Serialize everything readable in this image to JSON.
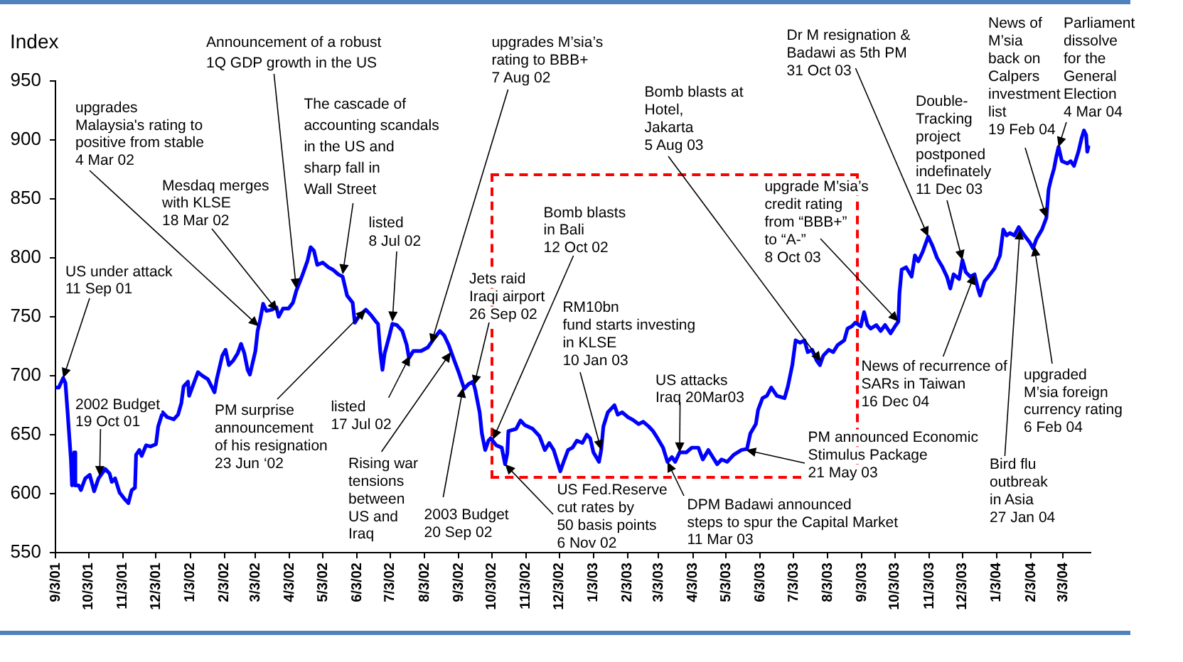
{
  "chart_data": {
    "type": "line",
    "ylabel": "Index",
    "color": "#0000ff",
    "marker": "none",
    "line_style": "solid",
    "grid": false,
    "legend": false,
    "xlim": [
      "2001-09-03",
      "2004-03-28"
    ],
    "xticks": [
      {
        "value": "2001-09-03",
        "label": "9/3/01"
      },
      {
        "value": "2001-10-03",
        "label": "10/3/01"
      },
      {
        "value": "2001-11-03",
        "label": "11/3/01"
      },
      {
        "value": "2001-12-03",
        "label": "12/3/01"
      },
      {
        "value": "2002-01-03",
        "label": "1/3/02"
      },
      {
        "value": "2002-02-03",
        "label": "2/3/02"
      },
      {
        "value": "2002-03-03",
        "label": "3/3/02"
      },
      {
        "value": "2002-04-03",
        "label": "4/3/02"
      },
      {
        "value": "2002-05-03",
        "label": "5/3/02"
      },
      {
        "value": "2002-06-03",
        "label": "6/3/02"
      },
      {
        "value": "2002-07-03",
        "label": "7/3/02"
      },
      {
        "value": "2002-08-03",
        "label": "8/3/02"
      },
      {
        "value": "2002-09-03",
        "label": "9/3/02"
      },
      {
        "value": "2002-10-03",
        "label": "10/3/02"
      },
      {
        "value": "2002-11-03",
        "label": "11/3/02"
      },
      {
        "value": "2002-12-03",
        "label": "12/3/02"
      },
      {
        "value": "2003-01-03",
        "label": "1/3/03"
      },
      {
        "value": "2003-02-03",
        "label": "2/3/03"
      },
      {
        "value": "2003-03-03",
        "label": "3/3/03"
      },
      {
        "value": "2003-04-03",
        "label": "4/3/03"
      },
      {
        "value": "2003-05-03",
        "label": "5/3/03"
      },
      {
        "value": "2003-06-03",
        "label": "6/3/03"
      },
      {
        "value": "2003-07-03",
        "label": "7/3/03"
      },
      {
        "value": "2003-08-03",
        "label": "8/3/03"
      },
      {
        "value": "2003-09-03",
        "label": "9/3/03"
      },
      {
        "value": "2003-10-03",
        "label": "10/3/03"
      },
      {
        "value": "2003-11-03",
        "label": "11/3/03"
      },
      {
        "value": "2003-12-03",
        "label": "12/3/03"
      },
      {
        "value": "2004-01-03",
        "label": "1/3/04"
      },
      {
        "value": "2004-02-03",
        "label": "2/3/04"
      },
      {
        "value": "2004-03-03",
        "label": "3/3/04"
      }
    ],
    "ylim": [
      550,
      950
    ],
    "yticks": [
      550,
      600,
      650,
      700,
      750,
      800,
      850,
      900,
      950
    ],
    "x": [
      "2001-09-03",
      "2001-09-06",
      "2001-09-10",
      "2001-09-12",
      "2001-09-14",
      "2001-09-17",
      "2001-09-18",
      "2001-09-20",
      "2001-09-21",
      "2001-09-24",
      "2001-09-26",
      "2001-09-30",
      "2001-10-04",
      "2001-10-08",
      "2001-10-12",
      "2001-10-18",
      "2001-10-22",
      "2001-10-24",
      "2001-10-27",
      "2001-10-31",
      "2001-11-05",
      "2001-11-08",
      "2001-11-11",
      "2001-11-14",
      "2001-11-15",
      "2001-11-18",
      "2001-11-20",
      "2001-11-24",
      "2001-11-28",
      "2001-12-03",
      "2001-12-05",
      "2001-12-09",
      "2001-12-13",
      "2001-12-19",
      "2001-12-23",
      "2001-12-26",
      "2001-12-28",
      "2002-01-01",
      "2002-01-02",
      "2002-01-06",
      "2002-01-10",
      "2002-01-14",
      "2002-01-19",
      "2002-01-25",
      "2002-01-27",
      "2002-02-01",
      "2002-02-04",
      "2002-02-07",
      "2002-02-11",
      "2002-02-15",
      "2002-02-18",
      "2002-02-21",
      "2002-02-24",
      "2002-02-26",
      "2002-03-03",
      "2002-03-05",
      "2002-03-07",
      "2002-03-10",
      "2002-03-13",
      "2002-03-18",
      "2002-03-22",
      "2002-03-24",
      "2002-03-28",
      "2002-04-02",
      "2002-04-06",
      "2002-04-09",
      "2002-04-14",
      "2002-04-19",
      "2002-04-22",
      "2002-04-25",
      "2002-04-28",
      "2002-05-03",
      "2002-05-08",
      "2002-05-12",
      "2002-05-17",
      "2002-05-21",
      "2002-05-25",
      "2002-05-30",
      "2002-06-01",
      "2002-06-05",
      "2002-06-11",
      "2002-06-16",
      "2002-06-20",
      "2002-06-22",
      "2002-06-24",
      "2002-06-26",
      "2002-06-28",
      "2002-07-02",
      "2002-07-05",
      "2002-07-09",
      "2002-07-14",
      "2002-07-18",
      "2002-07-20",
      "2002-07-24",
      "2002-07-31",
      "2002-08-06",
      "2002-08-12",
      "2002-08-17",
      "2002-08-21",
      "2002-08-25",
      "2002-08-30",
      "2002-09-03",
      "2002-09-08",
      "2002-09-12",
      "2002-09-16",
      "2002-09-18",
      "2002-09-22",
      "2002-09-24",
      "2002-09-27",
      "2002-09-30",
      "2002-10-02",
      "2002-10-07",
      "2002-10-12",
      "2002-10-15",
      "2002-10-17",
      "2002-10-18",
      "2002-10-25",
      "2002-10-29",
      "2002-11-02",
      "2002-11-09",
      "2002-11-15",
      "2002-11-20",
      "2002-11-24",
      "2002-11-28",
      "2002-12-02",
      "2002-12-04",
      "2002-12-07",
      "2002-12-11",
      "2002-12-15",
      "2002-12-19",
      "2002-12-24",
      "2002-12-28",
      "2002-12-31",
      "2003-01-03",
      "2003-01-08",
      "2003-01-10",
      "2003-01-12",
      "2003-01-16",
      "2003-01-22",
      "2003-01-25",
      "2003-01-29",
      "2003-02-03",
      "2003-02-07",
      "2003-02-13",
      "2003-02-17",
      "2003-02-22",
      "2003-02-26",
      "2003-03-02",
      "2003-03-07",
      "2003-03-11",
      "2003-03-15",
      "2003-03-18",
      "2003-03-22",
      "2003-03-28",
      "2003-04-02",
      "2003-04-08",
      "2003-04-12",
      "2003-04-17",
      "2003-04-21",
      "2003-04-25",
      "2003-04-29",
      "2003-05-04",
      "2003-05-10",
      "2003-05-17",
      "2003-05-22",
      "2003-05-25",
      "2003-05-30",
      "2003-06-01",
      "2003-06-05",
      "2003-06-09",
      "2003-06-13",
      "2003-06-18",
      "2003-06-25",
      "2003-06-28",
      "2003-07-02",
      "2003-07-05",
      "2003-07-09",
      "2003-07-13",
      "2003-07-16",
      "2003-07-20",
      "2003-07-24",
      "2003-07-27",
      "2003-07-30",
      "2003-08-04",
      "2003-08-08",
      "2003-08-12",
      "2003-08-18",
      "2003-08-21",
      "2003-08-25",
      "2003-08-28",
      "2003-09-02",
      "2003-09-05",
      "2003-09-08",
      "2003-09-11",
      "2003-09-16",
      "2003-09-20",
      "2003-09-24",
      "2003-09-29",
      "2003-10-03",
      "2003-10-06",
      "2003-10-07",
      "2003-10-09",
      "2003-10-13",
      "2003-10-18",
      "2003-10-21",
      "2003-10-24",
      "2003-10-28",
      "2003-11-02",
      "2003-11-06",
      "2003-11-10",
      "2003-11-15",
      "2003-11-19",
      "2003-11-22",
      "2003-11-25",
      "2003-11-30",
      "2003-12-03",
      "2003-12-06",
      "2003-12-10",
      "2003-12-14",
      "2003-12-17",
      "2003-12-19",
      "2003-12-23",
      "2003-12-28",
      "2004-01-01",
      "2004-01-06",
      "2004-01-09",
      "2004-01-12",
      "2004-01-15",
      "2004-01-19",
      "2004-01-23",
      "2004-01-28",
      "2004-02-02",
      "2004-02-05",
      "2004-02-08",
      "2004-02-13",
      "2004-02-17",
      "2004-02-19",
      "2004-02-21",
      "2004-02-24",
      "2004-02-26",
      "2004-02-28",
      "2004-03-02",
      "2004-03-07",
      "2004-03-10",
      "2004-03-13",
      "2004-03-17",
      "2004-03-20",
      "2004-03-22",
      "2004-03-24",
      "2004-03-25",
      "2004-03-26"
    ],
    "values": [
      690,
      690,
      698,
      694,
      669,
      629,
      607,
      635,
      607,
      607,
      603,
      613,
      616,
      602,
      613,
      621,
      617,
      610,
      613,
      601,
      595,
      592,
      603,
      605,
      633,
      637,
      632,
      641,
      640,
      642,
      657,
      669,
      665,
      663,
      667,
      677,
      691,
      695,
      683,
      693,
      703,
      700,
      697,
      686,
      697,
      717,
      722,
      709,
      713,
      719,
      727,
      719,
      705,
      701,
      721,
      738,
      746,
      761,
      755,
      756,
      758,
      750,
      757,
      757,
      762,
      772,
      784,
      797,
      809,
      806,
      794,
      796,
      792,
      790,
      786,
      784,
      768,
      762,
      745,
      751,
      756,
      751,
      746,
      744,
      721,
      705,
      719,
      733,
      744,
      743,
      738,
      726,
      715,
      721,
      721,
      724,
      732,
      738,
      734,
      726,
      713,
      703,
      689,
      693,
      695,
      688,
      669,
      651,
      637,
      645,
      647,
      641,
      639,
      625,
      634,
      653,
      655,
      662,
      658,
      655,
      649,
      637,
      643,
      637,
      625,
      619,
      627,
      637,
      639,
      645,
      643,
      650,
      647,
      635,
      627,
      637,
      657,
      669,
      675,
      667,
      669,
      665,
      663,
      659,
      661,
      657,
      653,
      647,
      639,
      627,
      631,
      627,
      635,
      635,
      639,
      639,
      629,
      637,
      631,
      625,
      629,
      627,
      633,
      637,
      638,
      651,
      659,
      671,
      681,
      683,
      690,
      683,
      681,
      691,
      709,
      730,
      728,
      730,
      720,
      722,
      713,
      709,
      717,
      722,
      720,
      726,
      730,
      740,
      742,
      745,
      742,
      754,
      743,
      740,
      743,
      738,
      743,
      736,
      742,
      746,
      770,
      790,
      792,
      784,
      802,
      797,
      805,
      818,
      810,
      800,
      792,
      784,
      774,
      786,
      782,
      798,
      788,
      784,
      786,
      774,
      768,
      780,
      786,
      791,
      802,
      824,
      819,
      821,
      819,
      826,
      819,
      813,
      808,
      816,
      824,
      834,
      858,
      866,
      876,
      886,
      894,
      882,
      880,
      882,
      878,
      890,
      902,
      908,
      904,
      890,
      894
    ],
    "annotations": [
      {
        "text": "US under attack\n11 Sep 01",
        "x": "2001-09-10",
        "y": 698
      },
      {
        "text": "2002 Budget\n19 Oct 01",
        "x": "2001-10-13",
        "y": 615
      },
      {
        "text": "upgrades\nMalaysia's rating to\npositive from stable\n4 Mar 02",
        "x": "2002-03-06",
        "y": 742
      },
      {
        "text": "Mesdaq merges\nwith KLSE\n18 Mar 02",
        "x": "2002-03-23",
        "y": 755
      },
      {
        "text": "Announcement of a robust\n1Q GDP growth in the US",
        "x": "2002-04-09",
        "y": 774
      },
      {
        "text": "The cascade of\naccounting scandals\nin the US and\nsharp fall in\nWall Street",
        "x": "2002-05-21",
        "y": 786
      },
      {
        "text": "listed\n8 Jul 02",
        "x": "2002-07-05",
        "y": 746
      },
      {
        "text": "PM surprise\nannouncement\nof his resignation\n23 Jun ‘02",
        "x": "2002-06-11",
        "y": 756
      },
      {
        "text": "listed\n17 Jul 02",
        "x": "2002-07-21",
        "y": 717
      },
      {
        "text": "Rising war\ntensions\nbetween\nUS and\nIraq",
        "x": "2002-08-27",
        "y": 720
      },
      {
        "text": "upgrades M’sia’s\nrating to BBB+\n7 Aug 02",
        "x": "2002-08-09",
        "y": 727
      },
      {
        "text": "2003 Budget\n20 Sep 02",
        "x": "2002-09-07",
        "y": 690
      },
      {
        "text": "Jets raid\nIraqi airport\n26 Sep 02",
        "x": "2002-09-17",
        "y": 692
      },
      {
        "text": "Bomb blasts\nin Bali\n12 Oct 02",
        "x": "2002-10-04",
        "y": 646
      },
      {
        "text": "US Fed.Reserve\ncut rates by\n50 basis points\n6 Nov 02",
        "x": "2002-10-15",
        "y": 625
      },
      {
        "text": "RM10bn\nfund starts investing\nin KLSE\n10 Jan 03",
        "x": "2003-01-10",
        "y": 637
      },
      {
        "text": "US attacks\nIraq 20Mar03",
        "x": "2003-03-22",
        "y": 635
      },
      {
        "text": "DPM Badawi announced\nsteps to spur the Capital Market\n11 Mar 03",
        "x": "2003-03-11",
        "y": 627
      },
      {
        "text": "PM announced Economic\nStimulus Package\n21 May 03",
        "x": "2003-05-21",
        "y": 637
      },
      {
        "text": "Bomb blasts at\nHotel,\nJakarta\n5 Aug 03",
        "x": "2003-07-28",
        "y": 712
      },
      {
        "text": "upgrade M’sia’s\ncredit rating\nfrom “BBB+”\nto “A-”\n8 Oct 03",
        "x": "2003-10-06",
        "y": 746
      },
      {
        "text": "Dr M resignation &\nBadawi as 5th PM\n31 Oct 03",
        "x": "2003-11-02",
        "y": 818
      },
      {
        "text": "Double-\nTracking\nproject\npostponed\nindefinately\n11 Dec 03",
        "x": "2003-12-03",
        "y": 798
      },
      {
        "text": "News of recurrence of\nSARs in Taiwan\n16 Dec 04",
        "x": "2003-12-14",
        "y": 786
      },
      {
        "text": "News of\nM’sia\nback on\nCalpers\ninvestment\nlist\n19 Feb 04",
        "x": "2004-02-17",
        "y": 834
      },
      {
        "text": "Parliament\ndissolve\nfor the\nGeneral\nElection\n4 Mar 04",
        "x": "2004-02-28",
        "y": 894
      },
      {
        "text": "Bird flu\noutbreak\nin Asia\n27 Jan 04",
        "x": "2004-01-24",
        "y": 824
      },
      {
        "text": "upgraded\nM’sia foreign\ncurrency rating\n6 Feb 04",
        "x": "2004-02-06",
        "y": 810
      }
    ]
  }
}
